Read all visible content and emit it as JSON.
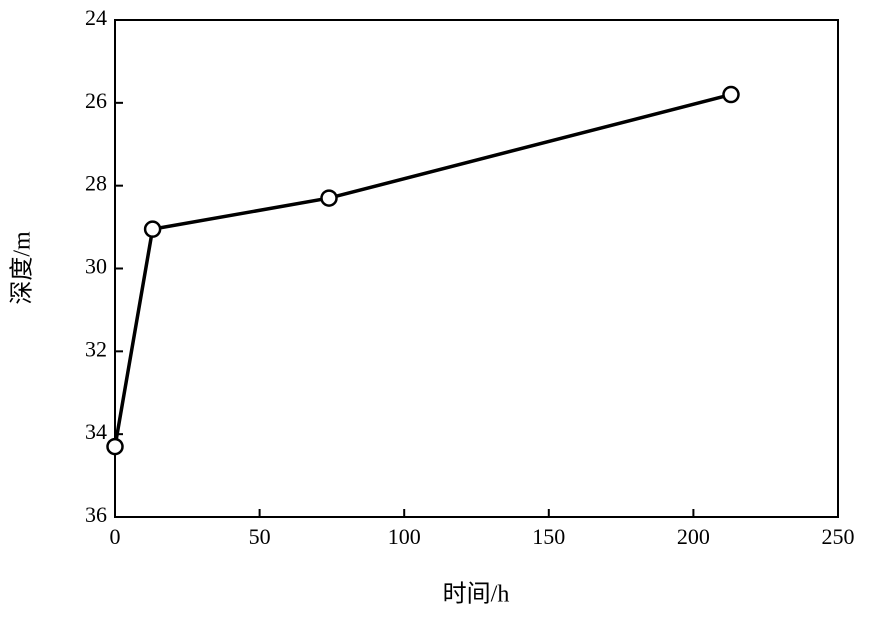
{
  "chart_data": {
    "type": "line",
    "x_label": "时间/h",
    "y_label": "深度/m",
    "x": [
      0,
      13,
      74,
      213
    ],
    "series": [
      {
        "name": null,
        "color": "#000000",
        "values": [
          34.3,
          29.05,
          28.3,
          25.8
        ]
      }
    ],
    "xlim": [
      0,
      250
    ],
    "xticks": [
      0,
      50,
      100,
      150,
      200,
      250
    ],
    "ylim": [
      24,
      36
    ],
    "yticks": [
      24,
      26,
      28,
      30,
      32,
      34,
      36
    ],
    "y_inverted": true,
    "markers": "open-circle",
    "grid": false
  }
}
